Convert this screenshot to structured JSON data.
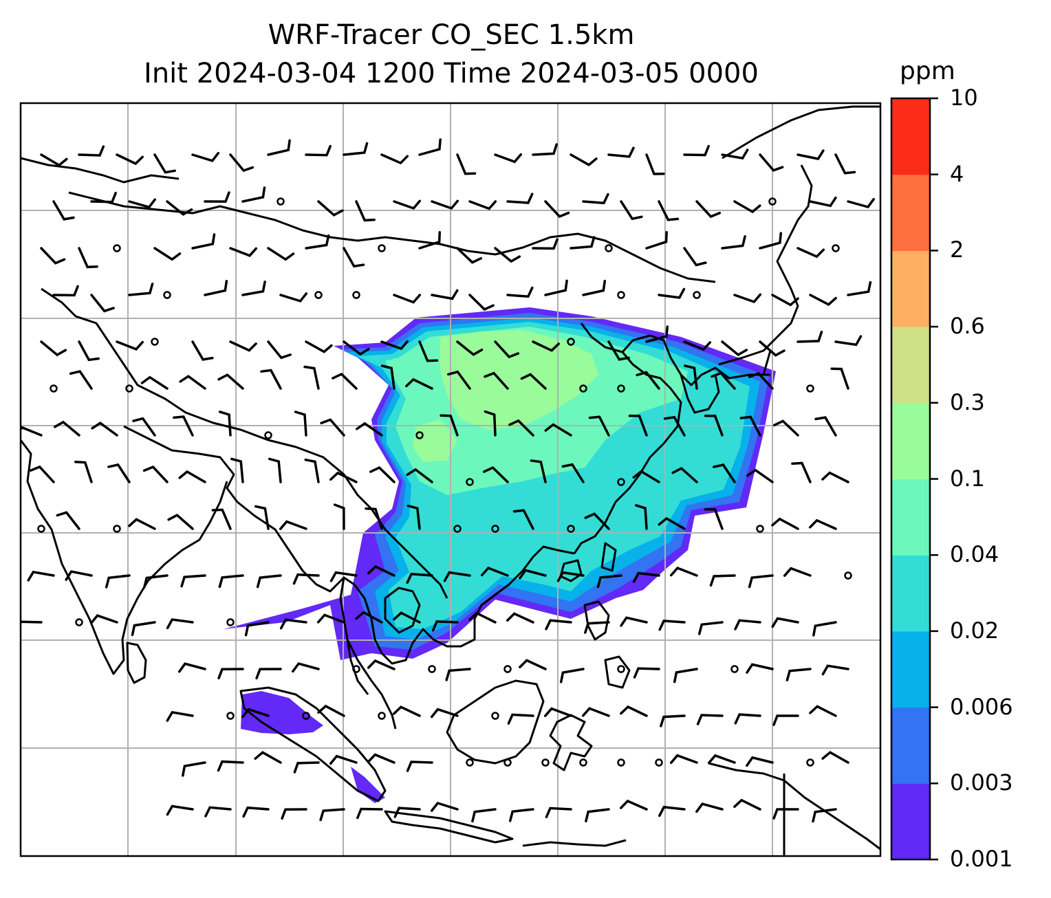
{
  "title": {
    "line1": "WRF-Tracer CO_SEC 1.5km",
    "line2": "Init 2024-03-04 1200 Time 2024-03-05 0000"
  },
  "colorbar": {
    "unit": "ppm",
    "levels": [
      "0.001",
      "0.003",
      "0.006",
      "0.02",
      "0.04",
      "0.1",
      "0.3",
      "0.6",
      "2",
      "4",
      "10"
    ],
    "colors": [
      "#6229f7",
      "#3274f1",
      "#07b1ea",
      "#33ddd5",
      "#6cf8bd",
      "#9afb9a",
      "#cfe085",
      "#fdb062",
      "#fe7040",
      "#fb2d18"
    ]
  },
  "map": {
    "gridlines": "on",
    "features": [
      "coastlines",
      "country-borders",
      "wind-barbs",
      "tracer-concentration"
    ]
  }
}
